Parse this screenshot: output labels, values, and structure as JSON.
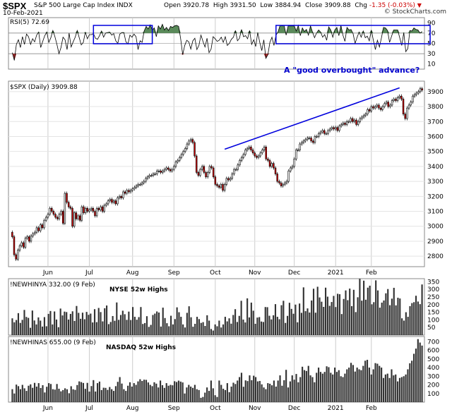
{
  "header": {
    "symbol": "$SPX",
    "name": "S&P 500 Large Cap Index",
    "exchange": "INDX",
    "date": "10-Feb-2021",
    "open_label": "Open",
    "open": "3920.78",
    "high_label": "High",
    "high": "3931.50",
    "low_label": "Low",
    "low": "3884.94",
    "close_label": "Close",
    "close": "3909.88",
    "chg_label": "Chg",
    "chg": "-1.35 (-0.03%)",
    "brand": "© StockCharts.com"
  },
  "colors": {
    "candle_up": "#ffffff",
    "candle_down": "#cc0000",
    "rsi_fill_overbought": "#5a8a5a",
    "rsi_fill_oversold": "#b03030",
    "trendline": "#0000dd",
    "box_outline": "#0000dd",
    "bars": "#333333",
    "annotation": "#0000cc"
  },
  "chart_data": [
    {
      "type": "line",
      "panel": "RSI",
      "legend": "RSI(5) 72.69",
      "y_ticks": [
        "90",
        "70",
        "50",
        "30",
        "10"
      ],
      "ylim": [
        0,
        100
      ],
      "overbought": 70,
      "oversold": 30,
      "values": [
        32,
        17,
        48,
        57,
        42,
        63,
        48,
        68,
        63,
        48,
        59,
        53,
        66,
        72,
        42,
        54,
        65,
        72,
        52,
        61,
        75,
        63,
        48,
        30,
        42,
        62,
        57,
        38,
        70,
        43,
        53,
        62,
        75,
        61,
        47,
        52,
        72,
        59,
        67,
        67,
        69,
        60,
        58,
        65,
        74,
        62,
        70,
        71,
        72,
        66,
        69,
        55,
        50,
        68,
        71,
        71,
        53,
        49,
        66,
        62,
        68,
        63,
        38,
        55,
        52,
        74,
        83,
        78,
        86,
        76,
        80,
        63,
        84,
        78,
        87,
        76,
        81,
        75,
        83,
        81,
        84,
        85,
        83,
        59,
        28,
        46,
        56,
        53,
        39,
        55,
        60,
        38,
        46,
        66,
        54,
        43,
        60,
        32,
        39,
        63,
        59,
        54,
        56,
        62,
        52,
        63,
        46,
        50,
        58,
        62,
        75,
        55,
        60,
        77,
        63,
        65,
        59,
        75,
        48,
        57,
        44,
        71,
        52,
        36,
        57,
        21,
        28,
        52,
        62,
        46,
        66,
        72,
        85,
        84,
        85,
        66,
        84,
        84,
        84,
        84,
        74,
        85,
        65,
        80,
        73,
        77,
        66,
        84,
        72,
        61,
        70,
        76,
        72,
        62,
        67,
        56,
        82,
        76,
        62,
        76,
        81,
        65,
        85,
        66,
        54,
        81,
        76,
        77,
        69,
        50,
        62,
        72,
        62,
        74,
        61,
        64,
        55,
        76,
        56,
        38,
        56,
        43,
        61,
        81,
        80,
        75,
        52,
        64,
        76,
        76,
        76,
        61,
        46,
        71,
        34,
        40,
        75,
        74,
        80,
        77,
        76,
        70,
        73
      ],
      "annotation": "A \"good overbought\" advance?",
      "boxes_span_index": [
        [
          40,
          69
        ],
        [
          130,
          206
        ]
      ]
    },
    {
      "type": "candlestick",
      "panel": "SPX",
      "legend": "$SPX (Daily) 3909.88",
      "ylabel": "",
      "y_ticks": [
        2800,
        2900,
        3000,
        3100,
        3200,
        3300,
        3400,
        3500,
        3600,
        3700,
        3800,
        3900
      ],
      "ylim": [
        2730,
        3970
      ],
      "close": [
        2930,
        2810,
        2780,
        2840,
        2870,
        2890,
        2860,
        2920,
        2930,
        2900,
        2935,
        2950,
        2960,
        2990,
        2970,
        3010,
        2990,
        3040,
        3060,
        3080,
        3120,
        3100,
        3080,
        3060,
        3050,
        3080,
        3100,
        3020,
        3220,
        3160,
        3130,
        3120,
        3000,
        3090,
        3050,
        3070,
        3040,
        3130,
        3090,
        3120,
        3100,
        3110,
        3120,
        3100,
        3070,
        3120,
        3110,
        3130,
        3100,
        3140,
        3150,
        3170,
        3180,
        3160,
        3170,
        3150,
        3190,
        3200,
        3190,
        3230,
        3220,
        3240,
        3230,
        3240,
        3250,
        3260,
        3270,
        3280,
        3280,
        3290,
        3300,
        3320,
        3330,
        3340,
        3340,
        3350,
        3350,
        3370,
        3370,
        3360,
        3370,
        3380,
        3390,
        3380,
        3370,
        3380,
        3400,
        3430,
        3440,
        3460,
        3480,
        3500,
        3520,
        3550,
        3570,
        3580,
        3560,
        3470,
        3360,
        3340,
        3380,
        3400,
        3360,
        3330,
        3360,
        3400,
        3390,
        3330,
        3280,
        3270,
        3260,
        3280,
        3240,
        3280,
        3320,
        3310,
        3320,
        3350,
        3380,
        3380,
        3410,
        3440,
        3460,
        3480,
        3510,
        3520,
        3530,
        3510,
        3490,
        3470,
        3460,
        3470,
        3490,
        3510,
        3530,
        3450,
        3440,
        3400,
        3420,
        3390,
        3350,
        3300,
        3290,
        3270,
        3280,
        3290,
        3300,
        3370,
        3390,
        3400,
        3450,
        3510,
        3510,
        3550,
        3560,
        3570,
        3580,
        3590,
        3590,
        3570,
        3560,
        3600,
        3600,
        3620,
        3630,
        3640,
        3620,
        3620,
        3640,
        3650,
        3660,
        3650,
        3660,
        3640,
        3670,
        3680,
        3690,
        3680,
        3700,
        3700,
        3720,
        3700,
        3710,
        3680,
        3700,
        3720,
        3730,
        3740,
        3750,
        3780,
        3770,
        3800,
        3790,
        3800,
        3810,
        3790,
        3780,
        3800,
        3820,
        3830,
        3800,
        3810,
        3840,
        3850,
        3840,
        3860,
        3870,
        3850,
        3750,
        3720,
        3790,
        3810,
        3830,
        3870,
        3880,
        3890,
        3900,
        3920,
        3910
      ],
      "x_tick_labels": [
        "Jun",
        "Jul",
        "Aug",
        "Sep",
        "Oct",
        "Nov",
        "Dec",
        "2021",
        "Feb"
      ],
      "x_tick_index": [
        19,
        41,
        64,
        86,
        108,
        129,
        150,
        172,
        191
      ],
      "trendline": {
        "from": {
          "index": 113,
          "value": 3515
        },
        "to": {
          "index": 206,
          "value": 3925
        }
      }
    },
    {
      "type": "bar",
      "panel": "NYSE",
      "legend": "!NEWHINYA 332.00 (9 Feb)",
      "title": "NYSE 52w Highs",
      "y_ticks": [
        "350",
        "300",
        "250",
        "200",
        "150",
        "100",
        "50"
      ],
      "ylim": [
        0,
        370
      ],
      "values": [
        110,
        84,
        99,
        144,
        80,
        100,
        165,
        119,
        113,
        48,
        161,
        96,
        70,
        116,
        95,
        56,
        118,
        58,
        139,
        158,
        70,
        155,
        102,
        52,
        174,
        129,
        154,
        151,
        102,
        139,
        156,
        93,
        191,
        146,
        107,
        147,
        104,
        152,
        133,
        141,
        83,
        170,
        85,
        178,
        151,
        90,
        176,
        194,
        72,
        86,
        125,
        94,
        214,
        100,
        132,
        160,
        137,
        100,
        154,
        99,
        184,
        120,
        101,
        118,
        184,
        73,
        79,
        124,
        54,
        67,
        132,
        141,
        155,
        148,
        56,
        180,
        112,
        78,
        58,
        127,
        70,
        105,
        182,
        150,
        120,
        70,
        50,
        146,
        189,
        117,
        55,
        74,
        120,
        105,
        80,
        85,
        60,
        130,
        95,
        40,
        30,
        70,
        58,
        95,
        50,
        70,
        120,
        90,
        110,
        75,
        132,
        170,
        86,
        126,
        225,
        102,
        83,
        241,
        116,
        213,
        160,
        74,
        115,
        118,
        89,
        86,
        184,
        183,
        127,
        103,
        130,
        203,
        120,
        104,
        196,
        225,
        80,
        126,
        212,
        172,
        140,
        200,
        84,
        207,
        146,
        313,
        157,
        175,
        148,
        227,
        304,
        147,
        317,
        247,
        219,
        185,
        311,
        252,
        192,
        217,
        257,
        184,
        271,
        268,
        138,
        237,
        293,
        229,
        305,
        190,
        297,
        151,
        248,
        369,
        226,
        357,
        232,
        311,
        324,
        202,
        216,
        359,
        293,
        180,
        213,
        227,
        274,
        302,
        196,
        239,
        310,
        195,
        245,
        240,
        110,
        95,
        150,
        120,
        190,
        210,
        216,
        258,
        220,
        203,
        332
      ],
      "x_tick_labels": [
        "Jun",
        "Jul",
        "Aug",
        "Sep",
        "Oct",
        "Nov",
        "Dec",
        "2021",
        "Feb"
      ]
    },
    {
      "type": "bar",
      "panel": "NASDAQ",
      "legend": "!NEWHINAS 655.00 (9 Feb)",
      "title": "NASDAQ 52w Highs",
      "y_ticks": [
        "700",
        "600",
        "500",
        "400",
        "300",
        "200",
        "100"
      ],
      "ylim": [
        0,
        760
      ],
      "values": [
        150,
        100,
        203,
        185,
        150,
        200,
        160,
        130,
        190,
        206,
        166,
        223,
        180,
        220,
        164,
        196,
        112,
        178,
        220,
        210,
        150,
        145,
        210,
        155,
        125,
        140,
        160,
        149,
        103,
        184,
        149,
        142,
        198,
        240,
        232,
        222,
        154,
        223,
        122,
        186,
        255,
        123,
        220,
        238,
        140,
        167,
        165,
        142,
        175,
        150,
        130,
        185,
        235,
        290,
        215,
        150,
        130,
        190,
        230,
        180,
        220,
        200,
        240,
        265,
        245,
        260,
        258,
        228,
        200,
        185,
        230,
        214,
        170,
        250,
        196,
        165,
        220,
        190,
        200,
        195,
        242,
        233,
        249,
        238,
        228,
        100,
        170,
        200,
        180,
        165,
        200,
        150,
        140,
        50,
        60,
        110,
        170,
        130,
        250,
        160,
        80,
        60,
        250,
        200,
        155,
        140,
        220,
        115,
        180,
        225,
        210,
        250,
        290,
        340,
        178,
        252,
        244,
        310,
        254,
        306,
        290,
        240,
        245,
        206,
        170,
        150,
        220,
        213,
        195,
        250,
        180,
        250,
        310,
        190,
        254,
        374,
        170,
        240,
        310,
        260,
        326,
        230,
        290,
        410,
        371,
        361,
        420,
        310,
        290,
        230,
        340,
        400,
        350,
        330,
        350,
        415,
        405,
        340,
        320,
        400,
        350,
        370,
        300,
        290,
        330,
        380,
        400,
        455,
        430,
        354,
        400,
        380,
        370,
        420,
        480,
        490,
        400,
        320,
        380,
        452,
        445,
        420,
        400,
        280,
        320,
        330,
        280,
        380,
        310,
        320,
        240,
        280,
        290,
        300,
        320,
        380,
        450,
        480,
        560,
        620,
        730,
        690,
        655
      ],
      "x_tick_labels": [
        "Jun",
        "Jul",
        "Aug",
        "Sep",
        "Oct",
        "Nov",
        "Dec",
        "2021",
        "Feb"
      ]
    }
  ]
}
